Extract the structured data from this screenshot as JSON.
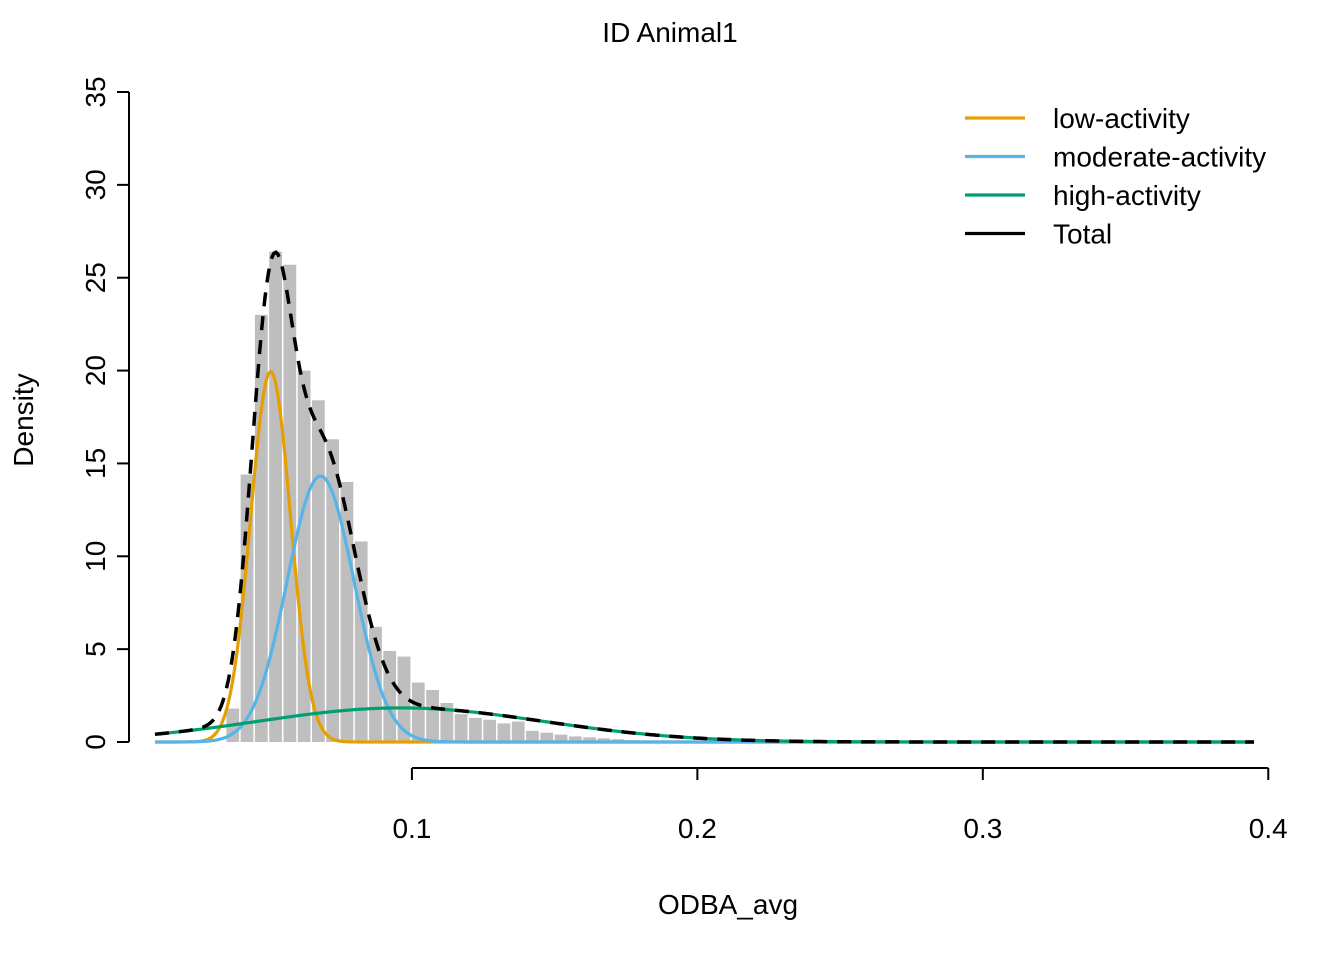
{
  "chart_data": {
    "type": "histogram",
    "title": "ID Animal1",
    "xlabel": "ODBA_avg",
    "ylabel": "Density",
    "xlim": [
      0.01,
      0.395
    ],
    "ylim": [
      0,
      35
    ],
    "x_ticks": [
      0.1,
      0.2,
      0.3,
      0.4
    ],
    "x_tick_labels": [
      "0.1",
      "0.2",
      "0.3",
      "0.4"
    ],
    "y_ticks": [
      0,
      5,
      10,
      15,
      20,
      25,
      30,
      35
    ],
    "y_tick_labels": [
      "0",
      "5",
      "10",
      "15",
      "20",
      "25",
      "30",
      "35"
    ],
    "grid": false,
    "legend_position": "top-right",
    "histogram": {
      "bin_width": 0.005,
      "bins": [
        {
          "x0": 0.035,
          "x1": 0.04,
          "density": 1.8
        },
        {
          "x0": 0.04,
          "x1": 0.045,
          "density": 14.4
        },
        {
          "x0": 0.045,
          "x1": 0.05,
          "density": 23.0
        },
        {
          "x0": 0.05,
          "x1": 0.055,
          "density": 26.4
        },
        {
          "x0": 0.055,
          "x1": 0.06,
          "density": 25.7
        },
        {
          "x0": 0.06,
          "x1": 0.065,
          "density": 20.0
        },
        {
          "x0": 0.065,
          "x1": 0.07,
          "density": 18.4
        },
        {
          "x0": 0.07,
          "x1": 0.075,
          "density": 16.3
        },
        {
          "x0": 0.075,
          "x1": 0.08,
          "density": 14.0
        },
        {
          "x0": 0.08,
          "x1": 0.085,
          "density": 10.8
        },
        {
          "x0": 0.085,
          "x1": 0.09,
          "density": 6.2
        },
        {
          "x0": 0.09,
          "x1": 0.095,
          "density": 4.9
        },
        {
          "x0": 0.095,
          "x1": 0.1,
          "density": 4.6
        },
        {
          "x0": 0.1,
          "x1": 0.105,
          "density": 3.2
        },
        {
          "x0": 0.105,
          "x1": 0.11,
          "density": 2.8
        },
        {
          "x0": 0.11,
          "x1": 0.115,
          "density": 2.1
        },
        {
          "x0": 0.115,
          "x1": 0.12,
          "density": 1.5
        },
        {
          "x0": 0.12,
          "x1": 0.125,
          "density": 1.3
        },
        {
          "x0": 0.125,
          "x1": 0.13,
          "density": 1.2
        },
        {
          "x0": 0.13,
          "x1": 0.135,
          "density": 1.0
        },
        {
          "x0": 0.135,
          "x1": 0.14,
          "density": 1.1
        },
        {
          "x0": 0.14,
          "x1": 0.145,
          "density": 0.6
        },
        {
          "x0": 0.145,
          "x1": 0.15,
          "density": 0.5
        },
        {
          "x0": 0.15,
          "x1": 0.155,
          "density": 0.4
        },
        {
          "x0": 0.155,
          "x1": 0.16,
          "density": 0.3
        },
        {
          "x0": 0.16,
          "x1": 0.165,
          "density": 0.25
        },
        {
          "x0": 0.165,
          "x1": 0.17,
          "density": 0.2
        },
        {
          "x0": 0.17,
          "x1": 0.175,
          "density": 0.15
        },
        {
          "x0": 0.175,
          "x1": 0.18,
          "density": 0.1
        },
        {
          "x0": 0.18,
          "x1": 0.185,
          "density": 0.08
        },
        {
          "x0": 0.185,
          "x1": 0.19,
          "density": 0.05
        }
      ],
      "color": "#bebebe"
    },
    "series": [
      {
        "name": "low-activity",
        "color": "#E69F00",
        "style": "solid",
        "weight": 0.35,
        "mean": 0.0505,
        "sd": 0.007
      },
      {
        "name": "moderate-activity",
        "color": "#56B4E9",
        "style": "solid",
        "weight": 0.42,
        "mean": 0.068,
        "sd": 0.0117
      },
      {
        "name": "high-activity",
        "color": "#009E73",
        "style": "solid",
        "weight": 0.23,
        "mean": 0.096,
        "sd": 0.05
      },
      {
        "name": "Total",
        "color": "#000000",
        "style": "dashed",
        "components": "sum"
      }
    ]
  }
}
